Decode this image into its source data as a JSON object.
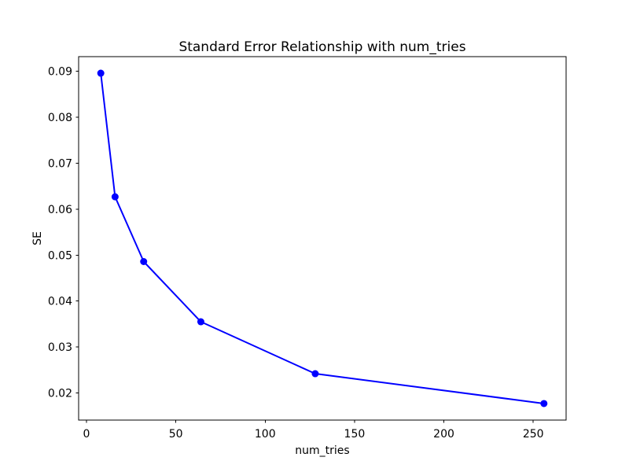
{
  "figure": {
    "background": "#ffffff"
  },
  "chart_data": {
    "type": "line",
    "title": "Standard Error Relationship with num_tries",
    "xlabel": "num_tries",
    "ylabel": "SE",
    "x": [
      8,
      16,
      32,
      64,
      128,
      256
    ],
    "y": [
      0.0896,
      0.0627,
      0.0486,
      0.0355,
      0.0242,
      0.0177
    ],
    "line_color": "#0000ff",
    "marker": "circle",
    "marker_radius": 4.5,
    "line_width": 2,
    "xlim": [
      -4.4,
      268.4
    ],
    "ylim": [
      0.0141,
      0.0932
    ],
    "xticks": {
      "values": [
        0,
        50,
        100,
        150,
        200,
        250
      ],
      "labels": [
        "0",
        "50",
        "100",
        "150",
        "200",
        "250"
      ]
    },
    "yticks": {
      "values": [
        0.02,
        0.03,
        0.04,
        0.05,
        0.06,
        0.07,
        0.08,
        0.09
      ],
      "labels": [
        "0.02",
        "0.03",
        "0.04",
        "0.05",
        "0.06",
        "0.07",
        "0.08",
        "0.09"
      ]
    },
    "grid": false,
    "legend": "none",
    "axes_color": "#000000",
    "tick_color": "#000000"
  }
}
